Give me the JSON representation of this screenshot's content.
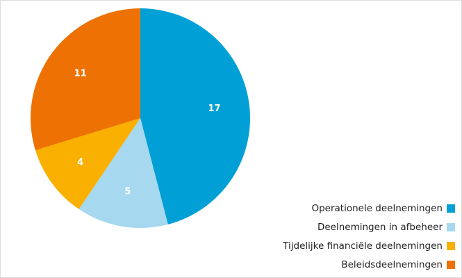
{
  "chart_data": {
    "type": "pie",
    "categories": [
      "Operationele deelnemingen",
      "Deelnemingen in afbeheer",
      "Tijdelijke financiële deelnemingen",
      "Beleidsdeelnemingen"
    ],
    "values": [
      17,
      5,
      4,
      11
    ],
    "colors": [
      "#00a0d6",
      "#a6d8f0",
      "#f9b000",
      "#ee7203"
    ],
    "legend": "lower right"
  }
}
